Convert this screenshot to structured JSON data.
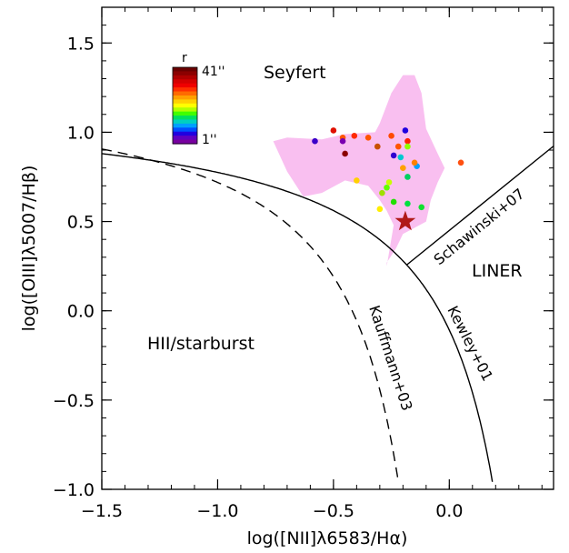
{
  "chart_data": {
    "type": "scatter",
    "xlabel": "log([NII]λ6583/Hα)",
    "ylabel": "log([OIII]λ5007/Hβ)",
    "xlim": [
      -1.5,
      0.45
    ],
    "ylim": [
      -1.0,
      1.7
    ],
    "x_ticks": [
      -1.5,
      -1.0,
      -0.5,
      0.0
    ],
    "x_tick_labels": [
      "−1.5",
      "−1.0",
      "−0.5",
      "0.0"
    ],
    "y_ticks": [
      -1.0,
      -0.5,
      0.0,
      0.5,
      1.0,
      1.5
    ],
    "y_tick_labels": [
      "−1.0",
      "−0.5",
      "0.0",
      "0.5",
      "1.0",
      "1.5"
    ],
    "regions": {
      "seyfert": "Seyfert",
      "liner": "LINER",
      "starburst": "HII/starburst"
    },
    "curves": {
      "kewley": "Kewley+01",
      "kauffmann": "Kauffmann+03",
      "schawinski": "Schawinski+07"
    },
    "colorbar": {
      "title": "r",
      "max_label": "41''",
      "min_label": "1''",
      "colors": [
        "#6a0000",
        "#8b0000",
        "#b00000",
        "#d40000",
        "#f00000",
        "#ff3000",
        "#ff6a00",
        "#ffa000",
        "#ffd000",
        "#ffff00",
        "#b0ff00",
        "#40ff00",
        "#00e060",
        "#00d0c0",
        "#00a0ff",
        "#0050ff",
        "#2000e0",
        "#6000c0",
        "#7800a0"
      ]
    },
    "agn_region_color": "#f9bff0",
    "agn_region": [
      [
        -0.76,
        0.95
      ],
      [
        -0.7,
        0.97
      ],
      [
        -0.55,
        0.96
      ],
      [
        -0.45,
        0.99
      ],
      [
        -0.32,
        1.0
      ],
      [
        -0.3,
        1.05
      ],
      [
        -0.25,
        1.22
      ],
      [
        -0.2,
        1.32
      ],
      [
        -0.15,
        1.32
      ],
      [
        -0.12,
        1.22
      ],
      [
        -0.1,
        1.02
      ],
      [
        -0.05,
        0.88
      ],
      [
        -0.02,
        0.8
      ],
      [
        -0.05,
        0.72
      ],
      [
        -0.08,
        0.62
      ],
      [
        -0.1,
        0.5
      ],
      [
        -0.2,
        0.43
      ],
      [
        -0.23,
        0.35
      ],
      [
        -0.27,
        0.27
      ],
      [
        -0.27,
        0.25
      ],
      [
        -0.24,
        0.48
      ],
      [
        -0.27,
        0.56
      ],
      [
        -0.3,
        0.62
      ],
      [
        -0.35,
        0.7
      ],
      [
        -0.45,
        0.73
      ],
      [
        -0.55,
        0.66
      ],
      [
        -0.63,
        0.64
      ],
      [
        -0.7,
        0.78
      ]
    ],
    "points": [
      {
        "x": -0.58,
        "y": 0.95,
        "color": "#3a00c8"
      },
      {
        "x": -0.5,
        "y": 1.01,
        "color": "#e01000"
      },
      {
        "x": -0.46,
        "y": 0.97,
        "color": "#ff5500"
      },
      {
        "x": -0.46,
        "y": 0.95,
        "color": "#7a00b0"
      },
      {
        "x": -0.45,
        "y": 0.88,
        "color": "#8b0000"
      },
      {
        "x": -0.41,
        "y": 0.98,
        "color": "#ff2a00"
      },
      {
        "x": -0.4,
        "y": 0.73,
        "color": "#ffd000"
      },
      {
        "x": -0.35,
        "y": 0.97,
        "color": "#ff5500"
      },
      {
        "x": -0.31,
        "y": 0.92,
        "color": "#c85000"
      },
      {
        "x": -0.29,
        "y": 0.66,
        "color": "#a0e000"
      },
      {
        "x": -0.3,
        "y": 0.57,
        "color": "#ffee00"
      },
      {
        "x": -0.27,
        "y": 0.69,
        "color": "#60ff00"
      },
      {
        "x": -0.25,
        "y": 0.98,
        "color": "#ff4a00"
      },
      {
        "x": -0.26,
        "y": 0.72,
        "color": "#c8ff00"
      },
      {
        "x": -0.24,
        "y": 0.61,
        "color": "#20e000"
      },
      {
        "x": -0.24,
        "y": 0.87,
        "color": "#3000d0"
      },
      {
        "x": -0.22,
        "y": 0.92,
        "color": "#ff5500"
      },
      {
        "x": -0.21,
        "y": 0.86,
        "color": "#00c8d0"
      },
      {
        "x": -0.2,
        "y": 0.8,
        "color": "#ffa000"
      },
      {
        "x": -0.19,
        "y": 1.01,
        "color": "#2000e0"
      },
      {
        "x": -0.18,
        "y": 0.95,
        "color": "#ff2000"
      },
      {
        "x": -0.18,
        "y": 0.92,
        "color": "#90ff00"
      },
      {
        "x": -0.18,
        "y": 0.75,
        "color": "#00d060"
      },
      {
        "x": -0.18,
        "y": 0.6,
        "color": "#00e040"
      },
      {
        "x": -0.14,
        "y": 0.81,
        "color": "#00a0ff"
      },
      {
        "x": -0.15,
        "y": 0.83,
        "color": "#ff8000"
      },
      {
        "x": -0.12,
        "y": 0.58,
        "color": "#10e030"
      },
      {
        "x": 0.05,
        "y": 0.83,
        "color": "#ff5010"
      }
    ],
    "star": {
      "x": -0.19,
      "y": 0.5,
      "color": "#b01818"
    }
  }
}
